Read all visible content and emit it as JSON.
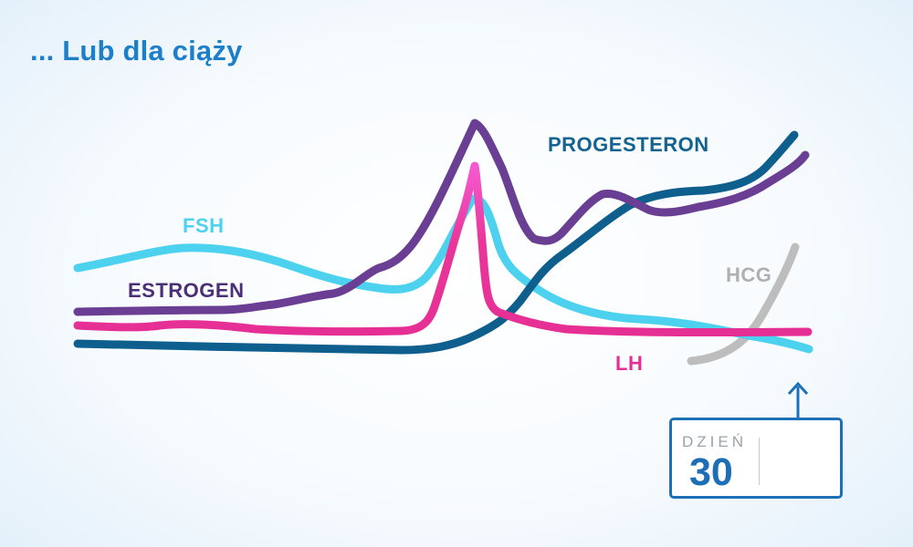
{
  "title": "... Lub dla ciąży",
  "labels": {
    "fsh": "FSH",
    "estrogen": "ESTROGEN",
    "progesteron": "PROGESTERON",
    "hcg": "HCG",
    "lh": "LH"
  },
  "day_box": {
    "label": "DZIEŃ",
    "value": "30"
  },
  "colors": {
    "fsh": "#4cd2ee",
    "estrogen": "#6a3e92",
    "progesteron": "#0f5f8e",
    "hcg": "#bdbdbd",
    "lh": "#e62f95",
    "accent": "#1c70b8"
  },
  "icons": {
    "day_arrow": "arrow-up-icon"
  }
}
